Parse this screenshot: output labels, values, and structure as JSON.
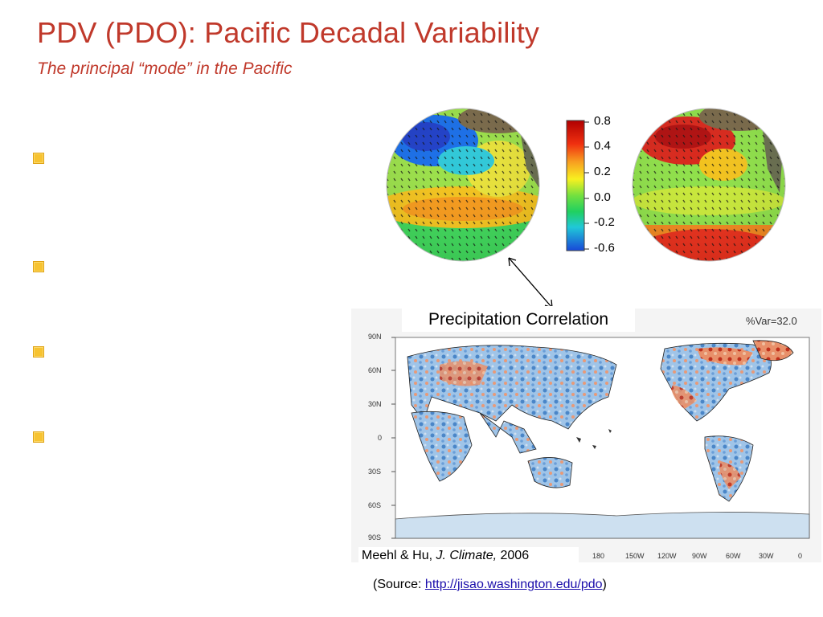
{
  "slide": {
    "title": "PDV (PDO): Pacific Decadal Variability",
    "subtitle": "The principal “mode” in the Pacific"
  },
  "bullets": [
    {
      "text": ""
    },
    {
      "text": ""
    },
    {
      "text": ""
    },
    {
      "text": ""
    }
  ],
  "colorbar": {
    "ticks": [
      "0.8",
      "0.4",
      "0.2",
      "0.0",
      "-0.2",
      "-0.6"
    ]
  },
  "precip_panel": {
    "label": "Precipitation Correlation",
    "variance": "%Var=32.0",
    "lat_ticks": [
      "90N",
      "60N",
      "30N",
      "0",
      "30S",
      "60S",
      "90S"
    ],
    "lon_ticks": [
      "180",
      "150W",
      "120W",
      "90W",
      "60W",
      "30W",
      "0"
    ]
  },
  "citation": {
    "authors": "Meehl & Hu, ",
    "journal": "J. Climate,",
    "year": " 2006"
  },
  "source": {
    "prefix": "(Source: ",
    "url": "http://jisao.washington.edu/pdo",
    "suffix": ")"
  },
  "colors": {
    "title": "#c0392b",
    "bullet": "#f7c331"
  }
}
